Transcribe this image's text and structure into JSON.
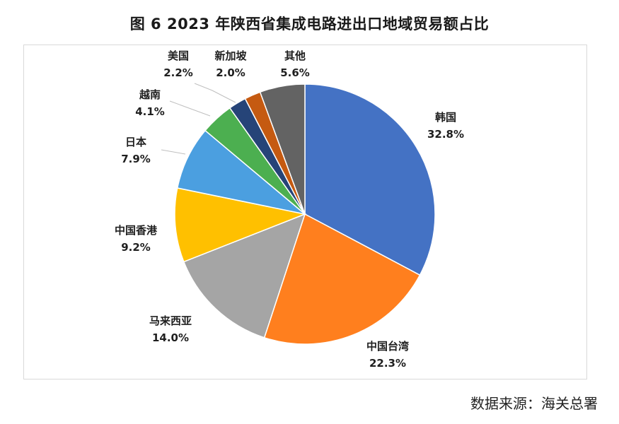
{
  "title": "图 6  2023 年陕西省集成电路进出口地域贸易额占比",
  "source": "数据来源：海关总署",
  "chart_data": {
    "type": "pie",
    "title": "图 6  2023 年陕西省集成电路进出口地域贸易额占比",
    "start_angle_deg": 0,
    "direction": "clockwise",
    "slices": [
      {
        "label": "韩国",
        "value": 32.8,
        "value_label": "32.8%",
        "color": "#4472C4"
      },
      {
        "label": "中国台湾",
        "value": 22.3,
        "value_label": "22.3%",
        "color": "#FF7F1E"
      },
      {
        "label": "马来西亚",
        "value": 14.0,
        "value_label": "14.0%",
        "color": "#A5A5A5"
      },
      {
        "label": "中国香港",
        "value": 9.2,
        "value_label": "9.2%",
        "color": "#FFC000"
      },
      {
        "label": "日本",
        "value": 7.9,
        "value_label": "7.9%",
        "color": "#4B9FE0"
      },
      {
        "label": "越南",
        "value": 4.1,
        "value_label": "4.1%",
        "color": "#4CAF50"
      },
      {
        "label": "美国",
        "value": 2.2,
        "value_label": "2.2%",
        "color": "#264478"
      },
      {
        "label": "新加坡",
        "value": 2.0,
        "value_label": "2.0%",
        "color": "#C55A11"
      },
      {
        "label": "其他",
        "value": 5.6,
        "value_label": "5.6%",
        "color": "#636363"
      }
    ]
  }
}
